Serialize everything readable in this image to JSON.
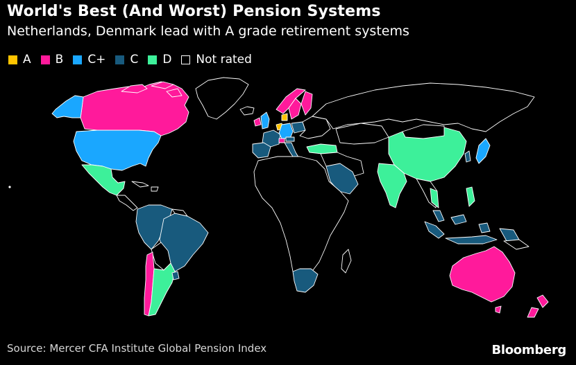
{
  "header": {
    "title": "World's Best (And Worst) Pension Systems",
    "subtitle": "Netherlands, Denmark lead with A grade retirement systems"
  },
  "legend": {
    "items": [
      {
        "label": "A",
        "color": "#ffc400"
      },
      {
        "label": "B",
        "color": "#ff1a9b"
      },
      {
        "label": "C+",
        "color": "#1aa7ff"
      },
      {
        "label": "C",
        "color": "#185a7d"
      },
      {
        "label": "D",
        "color": "#3df09a"
      },
      {
        "label": "Not rated",
        "color": "#000000"
      }
    ]
  },
  "footer": {
    "source": "Source: Mercer CFA Institute Global Pension Index",
    "brand": "Bloomberg"
  }
}
